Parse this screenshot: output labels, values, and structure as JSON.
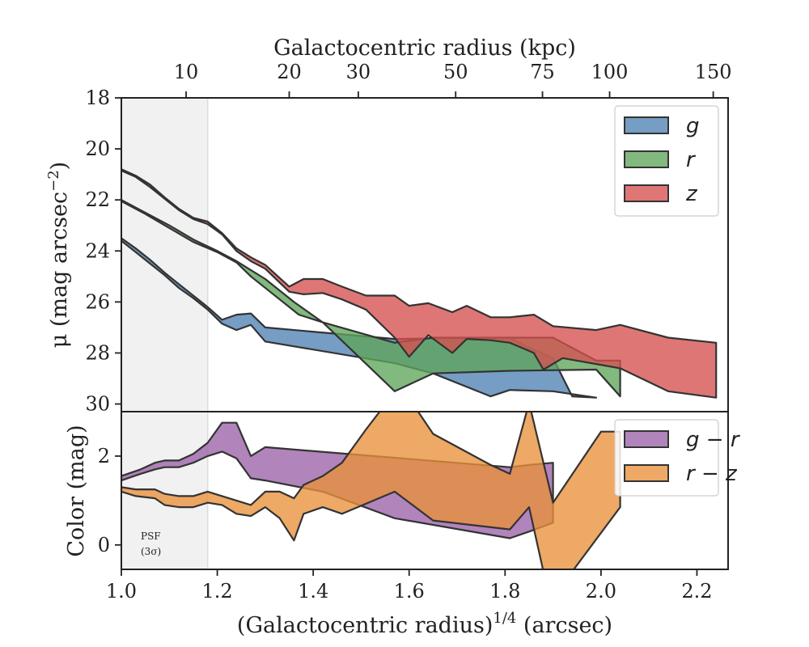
{
  "chart_data": [
    {
      "panel": "top",
      "type": "area",
      "title": "",
      "xlabel": "(Galactocentric radius)1/4 (arcsec)",
      "xlabel_main": "(Galactocentric radius)",
      "xlabel_sup": "1/4",
      "xlabel_unit": " (arcsec)",
      "ylabel": "μ (mag arcsec⁻²)",
      "ylabel_main": "μ (mag arcsec",
      "ylabel_sup": "−2",
      "ylabel_close": ")",
      "x2label": "Galactocentric radius (kpc)",
      "xlim": [
        1.0,
        2.265
      ],
      "ylim": [
        30.3,
        18.0
      ],
      "yticks": [
        18,
        20,
        22,
        24,
        26,
        28,
        30
      ],
      "x2ticks": [
        {
          "kpc": "10",
          "x": 1.135
        },
        {
          "kpc": "20",
          "x": 1.35
        },
        {
          "kpc": "30",
          "x": 1.494
        },
        {
          "kpc": "50",
          "x": 1.697
        },
        {
          "kpc": "75",
          "x": 1.878
        },
        {
          "kpc": "100",
          "x": 2.018
        },
        {
          "kpc": "150",
          "x": 2.234
        }
      ],
      "legend": {
        "position": "upper right"
      },
      "psf_region": {
        "x0": 1.0,
        "x1": 1.18
      },
      "series": [
        {
          "name": "g",
          "color": "#4f81b4",
          "upper": [
            [
              1.0,
              23.5
            ],
            [
              1.03,
              23.9
            ],
            [
              1.06,
              24.35
            ],
            [
              1.09,
              24.85
            ],
            [
              1.12,
              25.3
            ],
            [
              1.15,
              25.75
            ],
            [
              1.18,
              26.2
            ],
            [
              1.21,
              26.7
            ],
            [
              1.24,
              26.5
            ],
            [
              1.27,
              26.45
            ],
            [
              1.3,
              27.0
            ],
            [
              1.57,
              27.45
            ],
            [
              1.81,
              27.4
            ],
            [
              1.85,
              27.8
            ],
            [
              1.9,
              28.2
            ],
            [
              1.94,
              29.7
            ],
            [
              1.99,
              29.75
            ]
          ],
          "lower": [
            [
              1.0,
              23.6
            ],
            [
              1.03,
              24.05
            ],
            [
              1.06,
              24.5
            ],
            [
              1.09,
              24.95
            ],
            [
              1.12,
              25.45
            ],
            [
              1.15,
              25.85
            ],
            [
              1.18,
              26.3
            ],
            [
              1.21,
              26.85
            ],
            [
              1.24,
              27.1
            ],
            [
              1.27,
              26.9
            ],
            [
              1.3,
              27.55
            ],
            [
              1.57,
              28.4
            ],
            [
              1.65,
              28.8
            ],
            [
              1.77,
              29.7
            ],
            [
              1.81,
              29.45
            ],
            [
              1.9,
              29.5
            ],
            [
              1.99,
              29.75
            ]
          ]
        },
        {
          "name": "r",
          "color": "#5fa55a",
          "upper": [
            [
              1.0,
              22.0
            ],
            [
              1.05,
              22.5
            ],
            [
              1.1,
              23.0
            ],
            [
              1.15,
              23.55
            ],
            [
              1.2,
              24.0
            ],
            [
              1.24,
              24.4
            ],
            [
              1.3,
              25.1
            ],
            [
              1.36,
              26.0
            ],
            [
              1.42,
              26.8
            ],
            [
              1.57,
              27.6
            ],
            [
              1.65,
              27.4
            ],
            [
              1.85,
              27.4
            ],
            [
              1.9,
              27.4
            ],
            [
              1.99,
              28.3
            ],
            [
              2.04,
              28.3
            ]
          ],
          "lower": [
            [
              1.0,
              22.05
            ],
            [
              1.05,
              22.55
            ],
            [
              1.1,
              23.1
            ],
            [
              1.15,
              23.65
            ],
            [
              1.2,
              24.05
            ],
            [
              1.24,
              24.45
            ],
            [
              1.27,
              25.0
            ],
            [
              1.33,
              25.9
            ],
            [
              1.37,
              26.5
            ],
            [
              1.42,
              26.8
            ],
            [
              1.57,
              29.5
            ],
            [
              1.65,
              28.8
            ],
            [
              1.81,
              28.7
            ],
            [
              1.99,
              28.65
            ],
            [
              2.04,
              29.7
            ]
          ]
        },
        {
          "name": "z",
          "color": "#d6504f",
          "upper": [
            [
              1.0,
              20.8
            ],
            [
              1.03,
              21.05
            ],
            [
              1.06,
              21.4
            ],
            [
              1.09,
              21.9
            ],
            [
              1.12,
              22.35
            ],
            [
              1.15,
              22.7
            ],
            [
              1.18,
              22.85
            ],
            [
              1.21,
              23.3
            ],
            [
              1.24,
              23.9
            ],
            [
              1.27,
              24.25
            ],
            [
              1.3,
              24.55
            ],
            [
              1.35,
              25.4
            ],
            [
              1.38,
              25.1
            ],
            [
              1.42,
              25.1
            ],
            [
              1.46,
              25.4
            ],
            [
              1.51,
              25.75
            ],
            [
              1.57,
              25.75
            ],
            [
              1.6,
              26.15
            ],
            [
              1.64,
              26.05
            ],
            [
              1.69,
              26.4
            ],
            [
              1.72,
              26.15
            ],
            [
              1.77,
              26.6
            ],
            [
              1.81,
              26.6
            ],
            [
              1.86,
              26.5
            ],
            [
              1.9,
              26.95
            ],
            [
              1.99,
              27.1
            ],
            [
              2.04,
              26.9
            ],
            [
              2.14,
              27.4
            ],
            [
              2.24,
              27.6
            ]
          ],
          "lower": [
            [
              1.0,
              20.85
            ],
            [
              1.03,
              21.1
            ],
            [
              1.06,
              21.5
            ],
            [
              1.09,
              21.95
            ],
            [
              1.12,
              22.4
            ],
            [
              1.15,
              22.75
            ],
            [
              1.18,
              22.95
            ],
            [
              1.21,
              23.35
            ],
            [
              1.24,
              24.0
            ],
            [
              1.27,
              24.4
            ],
            [
              1.3,
              24.7
            ],
            [
              1.35,
              25.6
            ],
            [
              1.38,
              25.7
            ],
            [
              1.42,
              25.65
            ],
            [
              1.46,
              25.9
            ],
            [
              1.51,
              26.3
            ],
            [
              1.57,
              27.4
            ],
            [
              1.6,
              28.15
            ],
            [
              1.64,
              27.3
            ],
            [
              1.69,
              28.0
            ],
            [
              1.72,
              27.45
            ],
            [
              1.77,
              27.5
            ],
            [
              1.81,
              27.6
            ],
            [
              1.86,
              28.0
            ],
            [
              1.88,
              28.65
            ],
            [
              1.92,
              28.2
            ],
            [
              2.04,
              28.6
            ],
            [
              2.14,
              29.5
            ],
            [
              2.24,
              29.75
            ]
          ]
        }
      ]
    },
    {
      "panel": "bottom",
      "type": "area",
      "xlabel": "(Galactocentric radius)1/4 (arcsec)",
      "ylabel": "Color (mag)",
      "xlim": [
        1.0,
        2.265
      ],
      "ylim": [
        -0.55,
        3.0
      ],
      "yticks": [
        0,
        2
      ],
      "xticks": [
        1.0,
        1.2,
        1.4,
        1.6,
        1.8,
        2.0,
        2.2
      ],
      "xtick_labels": [
        "1.0",
        "1.2",
        "1.4",
        "1.6",
        "1.8",
        "2.0",
        "2.2"
      ],
      "legend": {
        "position": "upper right"
      },
      "psf_region": {
        "x0": 1.0,
        "x1": 1.18
      },
      "annotation": {
        "line1": "PSF",
        "line2": "(3σ)"
      },
      "series": [
        {
          "name": "g − r",
          "color": "#9b62a8",
          "upper": [
            [
              1.0,
              1.55
            ],
            [
              1.04,
              1.7
            ],
            [
              1.07,
              1.85
            ],
            [
              1.09,
              1.9
            ],
            [
              1.12,
              1.9
            ],
            [
              1.15,
              2.05
            ],
            [
              1.18,
              2.3
            ],
            [
              1.21,
              2.75
            ],
            [
              1.24,
              2.75
            ],
            [
              1.27,
              2.0
            ],
            [
              1.3,
              2.2
            ],
            [
              1.81,
              1.75
            ],
            [
              1.85,
              1.8
            ],
            [
              1.9,
              1.85
            ]
          ],
          "lower": [
            [
              1.0,
              1.45
            ],
            [
              1.04,
              1.6
            ],
            [
              1.07,
              1.7
            ],
            [
              1.09,
              1.75
            ],
            [
              1.12,
              1.75
            ],
            [
              1.15,
              1.85
            ],
            [
              1.18,
              2.0
            ],
            [
              1.21,
              2.1
            ],
            [
              1.24,
              1.95
            ],
            [
              1.27,
              1.5
            ],
            [
              1.3,
              1.45
            ],
            [
              1.42,
              1.2
            ],
            [
              1.57,
              0.6
            ],
            [
              1.81,
              0.15
            ],
            [
              1.85,
              0.3
            ],
            [
              1.9,
              0.5
            ]
          ]
        },
        {
          "name": "r − z",
          "color": "#e8913a",
          "upper": [
            [
              1.0,
              1.3
            ],
            [
              1.03,
              1.25
            ],
            [
              1.07,
              1.25
            ],
            [
              1.09,
              1.15
            ],
            [
              1.12,
              1.1
            ],
            [
              1.15,
              1.1
            ],
            [
              1.18,
              1.2
            ],
            [
              1.21,
              1.1
            ],
            [
              1.24,
              1.0
            ],
            [
              1.27,
              0.9
            ],
            [
              1.3,
              1.2
            ],
            [
              1.33,
              1.2
            ],
            [
              1.36,
              1.05
            ],
            [
              1.38,
              1.35
            ],
            [
              1.42,
              1.55
            ],
            [
              1.46,
              1.85
            ],
            [
              1.51,
              2.6
            ],
            [
              1.56,
              3.3
            ],
            [
              1.6,
              3.3
            ],
            [
              1.65,
              2.5
            ],
            [
              1.77,
              1.8
            ],
            [
              1.81,
              1.6
            ],
            [
              1.85,
              3.2
            ],
            [
              1.9,
              0.95
            ],
            [
              2.0,
              2.55
            ],
            [
              2.04,
              2.55
            ]
          ],
          "lower": [
            [
              1.0,
              1.2
            ],
            [
              1.03,
              1.1
            ],
            [
              1.07,
              1.05
            ],
            [
              1.09,
              0.9
            ],
            [
              1.12,
              0.85
            ],
            [
              1.15,
              0.85
            ],
            [
              1.18,
              0.95
            ],
            [
              1.21,
              0.9
            ],
            [
              1.24,
              0.7
            ],
            [
              1.27,
              0.65
            ],
            [
              1.3,
              0.85
            ],
            [
              1.33,
              0.6
            ],
            [
              1.36,
              0.1
            ],
            [
              1.38,
              0.7
            ],
            [
              1.42,
              0.85
            ],
            [
              1.46,
              0.7
            ],
            [
              1.57,
              1.2
            ],
            [
              1.65,
              0.55
            ],
            [
              1.81,
              0.35
            ],
            [
              1.85,
              0.85
            ],
            [
              1.88,
              -0.6
            ],
            [
              1.94,
              -0.6
            ],
            [
              2.04,
              0.85
            ]
          ]
        }
      ]
    }
  ]
}
